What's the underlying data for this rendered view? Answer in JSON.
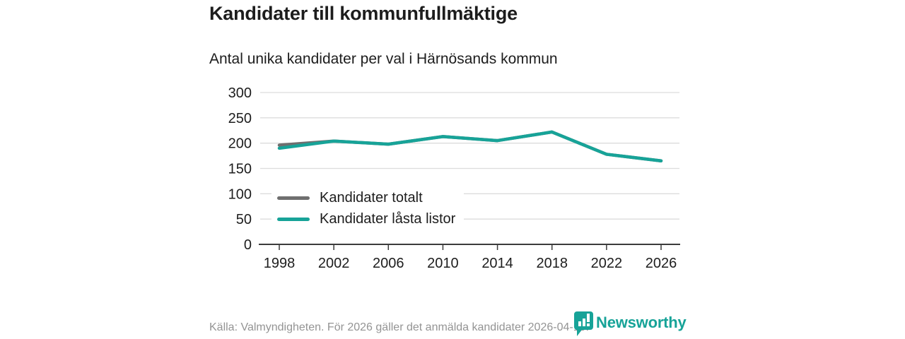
{
  "page": {
    "title": "Kandidater till kommunfullmäktige",
    "subtitle": "Antal unika kandidater per val i Härnösands kommun",
    "source_note": "Källa: Valmyndigheten. För 2026 gäller det anmälda kandidater 2026-04-10."
  },
  "branding": {
    "wordmark": "Newsworthy",
    "icon": "bar-chart-pin-icon"
  },
  "colors": {
    "accent_teal": "#17A398",
    "series_gray": "#6F6F6F",
    "grid": "#DCDCDC",
    "axis": "#3B3B3B",
    "text_dark": "#1D1D1D",
    "text_muted": "#949494"
  },
  "chart_data": {
    "type": "line",
    "title": "Kandidater till kommunfullmäktige",
    "subtitle": "Antal unika kandidater per val i Härnösands kommun",
    "x": [
      1998,
      2002,
      2006,
      2010,
      2014,
      2018,
      2022,
      2026
    ],
    "series": [
      {
        "name": "Kandidater totalt",
        "color": "#6F6F6F",
        "values": [
          196,
          204,
          198,
          213,
          205,
          222,
          178,
          165
        ]
      },
      {
        "name": "Kandidater låsta listor",
        "color": "#17A398",
        "values": [
          190,
          204,
          198,
          213,
          205,
          222,
          178,
          165
        ]
      }
    ],
    "ylim": [
      0,
      300
    ],
    "yticks": [
      0,
      50,
      100,
      150,
      200,
      250,
      300
    ],
    "grid": true,
    "legend": [
      "Kandidater totalt",
      "Kandidater låsta listor"
    ],
    "legend_position": "inside-bottom-left"
  }
}
